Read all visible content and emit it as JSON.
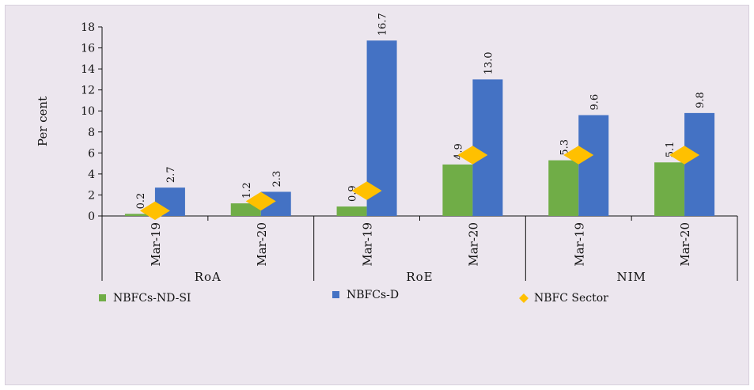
{
  "chart_data": {
    "type": "bar",
    "ylabel": "Per cent",
    "ylim": [
      0,
      18
    ],
    "yticks": [
      0,
      2,
      4,
      6,
      8,
      10,
      12,
      14,
      16,
      18
    ],
    "groups": [
      {
        "name": "RoA",
        "categories": [
          "Mar-19",
          "Mar-20"
        ]
      },
      {
        "name": "RoE",
        "categories": [
          "Mar-19",
          "Mar-20"
        ]
      },
      {
        "name": "NIM",
        "categories": [
          "Mar-19",
          "Mar-20"
        ]
      }
    ],
    "series": [
      {
        "name": "NBFCs-ND-SI",
        "kind": "bar",
        "color": "#70ad47",
        "values": [
          0.2,
          1.2,
          0.9,
          4.9,
          5.3,
          5.1
        ],
        "labels": [
          "0.2",
          "1.2",
          "0.9",
          "4.9",
          "5.3",
          "5.1"
        ]
      },
      {
        "name": "NBFCs-D",
        "kind": "bar",
        "color": "#4472c4",
        "values": [
          2.7,
          2.3,
          16.7,
          13.0,
          9.6,
          9.8
        ],
        "labels": [
          "2.7",
          "2.3",
          "16.7",
          "13.0",
          "9.6",
          "9.8"
        ]
      },
      {
        "name": "NBFC Sector",
        "kind": "marker",
        "color": "#ffc000",
        "values": [
          0.5,
          1.4,
          2.4,
          5.8,
          5.8,
          5.8
        ]
      }
    ],
    "grid": false,
    "legend_position": "bottom-left"
  }
}
